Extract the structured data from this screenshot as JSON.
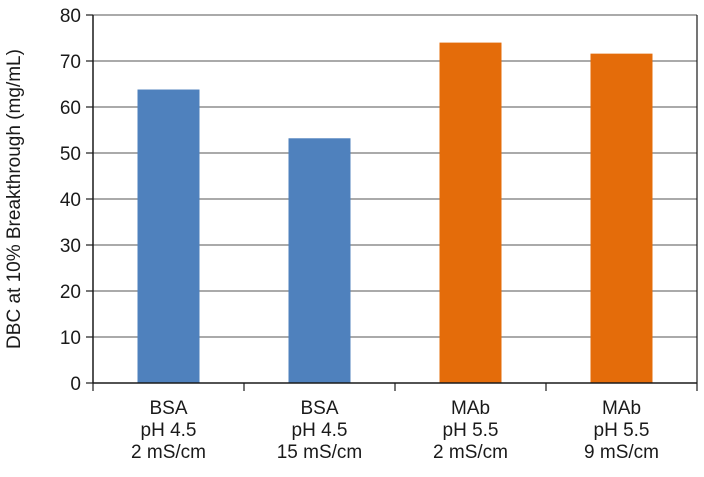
{
  "chart_data": {
    "type": "bar",
    "title": "",
    "xlabel": "",
    "ylabel": "DBC at 10% Breakthrough (mg/mL)",
    "ylim": [
      0,
      80
    ],
    "yticks": [
      0,
      10,
      20,
      30,
      40,
      50,
      60,
      70,
      80
    ],
    "grid": true,
    "legend": "none",
    "categories": [
      [
        "BSA",
        "pH 4.5",
        "2 mS/cm"
      ],
      [
        "BSA",
        "pH 4.5",
        "15 mS/cm"
      ],
      [
        "MAb",
        "pH 5.5",
        "2 mS/cm"
      ],
      [
        "MAb",
        "pH 5.5",
        "9 mS/cm"
      ]
    ],
    "values": [
      63.8,
      53.2,
      74.0,
      71.6
    ],
    "colors": [
      "#4f81bd",
      "#4f81bd",
      "#e46c0a",
      "#e46c0a"
    ],
    "axis_color": "#1a1a1a",
    "grid_color": "#555555"
  }
}
